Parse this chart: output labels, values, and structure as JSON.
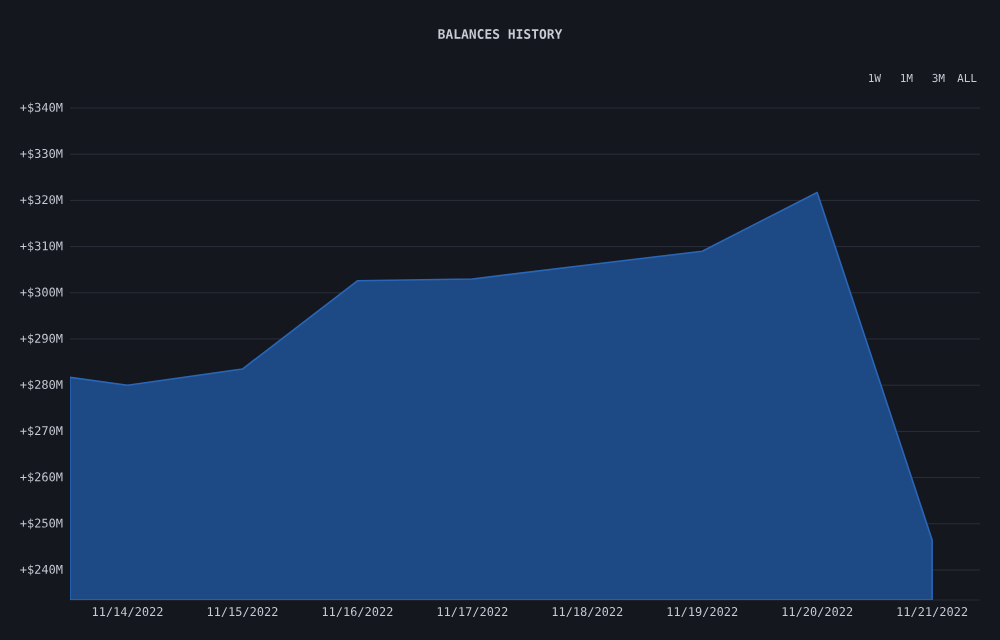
{
  "chart_data": {
    "type": "area",
    "title": "BALANCES HISTORY",
    "annotations": [
      "1W",
      "1M",
      "3M",
      "ALL"
    ],
    "x": [
      "2022-11-13T12:00",
      "2022-11-14",
      "2022-11-15",
      "2022-11-16",
      "2022-11-17",
      "2022-11-18",
      "2022-11-19",
      "2022-11-20",
      "2022-11-21"
    ],
    "values": [
      281.7,
      280,
      283.5,
      302.6,
      303,
      306,
      309,
      321.7,
      246.5
    ],
    "color": "#1d4a85",
    "xlim": [
      "2022-11-13T12:00",
      "2022-11-21T10:00"
    ],
    "xticks": [
      {
        "value": "2022-11-14",
        "label": "11/14/2022"
      },
      {
        "value": "2022-11-15",
        "label": "11/15/2022"
      },
      {
        "value": "2022-11-16",
        "label": "11/16/2022"
      },
      {
        "value": "2022-11-17",
        "label": "11/17/2022"
      },
      {
        "value": "2022-11-18",
        "label": "11/18/2022"
      },
      {
        "value": "2022-11-19",
        "label": "11/19/2022"
      },
      {
        "value": "2022-11-20",
        "label": "11/20/2022"
      },
      {
        "value": "2022-11-21",
        "label": "11/21/2022"
      }
    ],
    "ylim": [
      233.5,
      340
    ],
    "yticks": [
      {
        "value": 240,
        "label": "+$240M"
      },
      {
        "value": 250,
        "label": "+$250M"
      },
      {
        "value": 260,
        "label": "+$260M"
      },
      {
        "value": 270,
        "label": "+$270M"
      },
      {
        "value": 280,
        "label": "+$280M"
      },
      {
        "value": 290,
        "label": "+$290M"
      },
      {
        "value": 300,
        "label": "+$300M"
      },
      {
        "value": 310,
        "label": "+$310M"
      },
      {
        "value": 320,
        "label": "+$320M"
      },
      {
        "value": 330,
        "label": "+$330M"
      },
      {
        "value": 340,
        "label": "+$340M"
      }
    ],
    "grid": "y"
  }
}
